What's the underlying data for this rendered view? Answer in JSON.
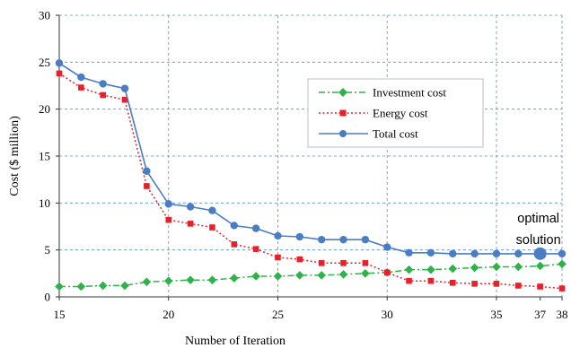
{
  "chart_data": {
    "type": "line",
    "xlabel": "Number of Iteration",
    "ylabel": "Cost ($ million)",
    "xlim": [
      15,
      38
    ],
    "ylim": [
      0,
      30
    ],
    "x_ticks": [
      15,
      20,
      25,
      30,
      35,
      37,
      38
    ],
    "y_ticks": [
      0,
      5,
      10,
      15,
      20,
      25,
      30
    ],
    "grid": true,
    "legend_position": "upper-right-inside",
    "x": [
      15,
      16,
      17,
      18,
      19,
      20,
      21,
      22,
      23,
      24,
      25,
      26,
      27,
      28,
      29,
      30,
      31,
      32,
      33,
      34,
      35,
      36,
      37,
      38
    ],
    "series": [
      {
        "name": "Investment cost",
        "color": "#2DB34A",
        "marker": "diamond",
        "line": "dash-dot",
        "values": [
          1.1,
          1.1,
          1.2,
          1.2,
          1.6,
          1.7,
          1.8,
          1.8,
          2.0,
          2.2,
          2.2,
          2.3,
          2.3,
          2.4,
          2.5,
          2.6,
          2.9,
          2.9,
          3.0,
          3.1,
          3.2,
          3.2,
          3.3,
          3.5
        ]
      },
      {
        "name": "Energy cost",
        "color": "#E8202A",
        "marker": "square",
        "line": "dotted",
        "values": [
          23.8,
          22.3,
          21.5,
          21.0,
          11.8,
          8.2,
          7.8,
          7.4,
          5.6,
          5.1,
          4.2,
          4.0,
          3.6,
          3.6,
          3.6,
          2.6,
          1.7,
          1.7,
          1.5,
          1.4,
          1.4,
          1.2,
          1.1,
          0.9
        ]
      },
      {
        "name": "Total cost",
        "color": "#4A7DC4",
        "marker": "circle",
        "line": "solid",
        "values": [
          24.9,
          23.4,
          22.7,
          22.2,
          13.4,
          9.9,
          9.6,
          9.2,
          7.6,
          7.3,
          6.5,
          6.4,
          6.1,
          6.1,
          6.1,
          5.3,
          4.7,
          4.7,
          4.6,
          4.6,
          4.6,
          4.6,
          4.6,
          4.6
        ]
      }
    ],
    "annotation": {
      "text_line1": "optimal",
      "text_line2": "solution",
      "x": 37,
      "y": 4.6
    }
  }
}
